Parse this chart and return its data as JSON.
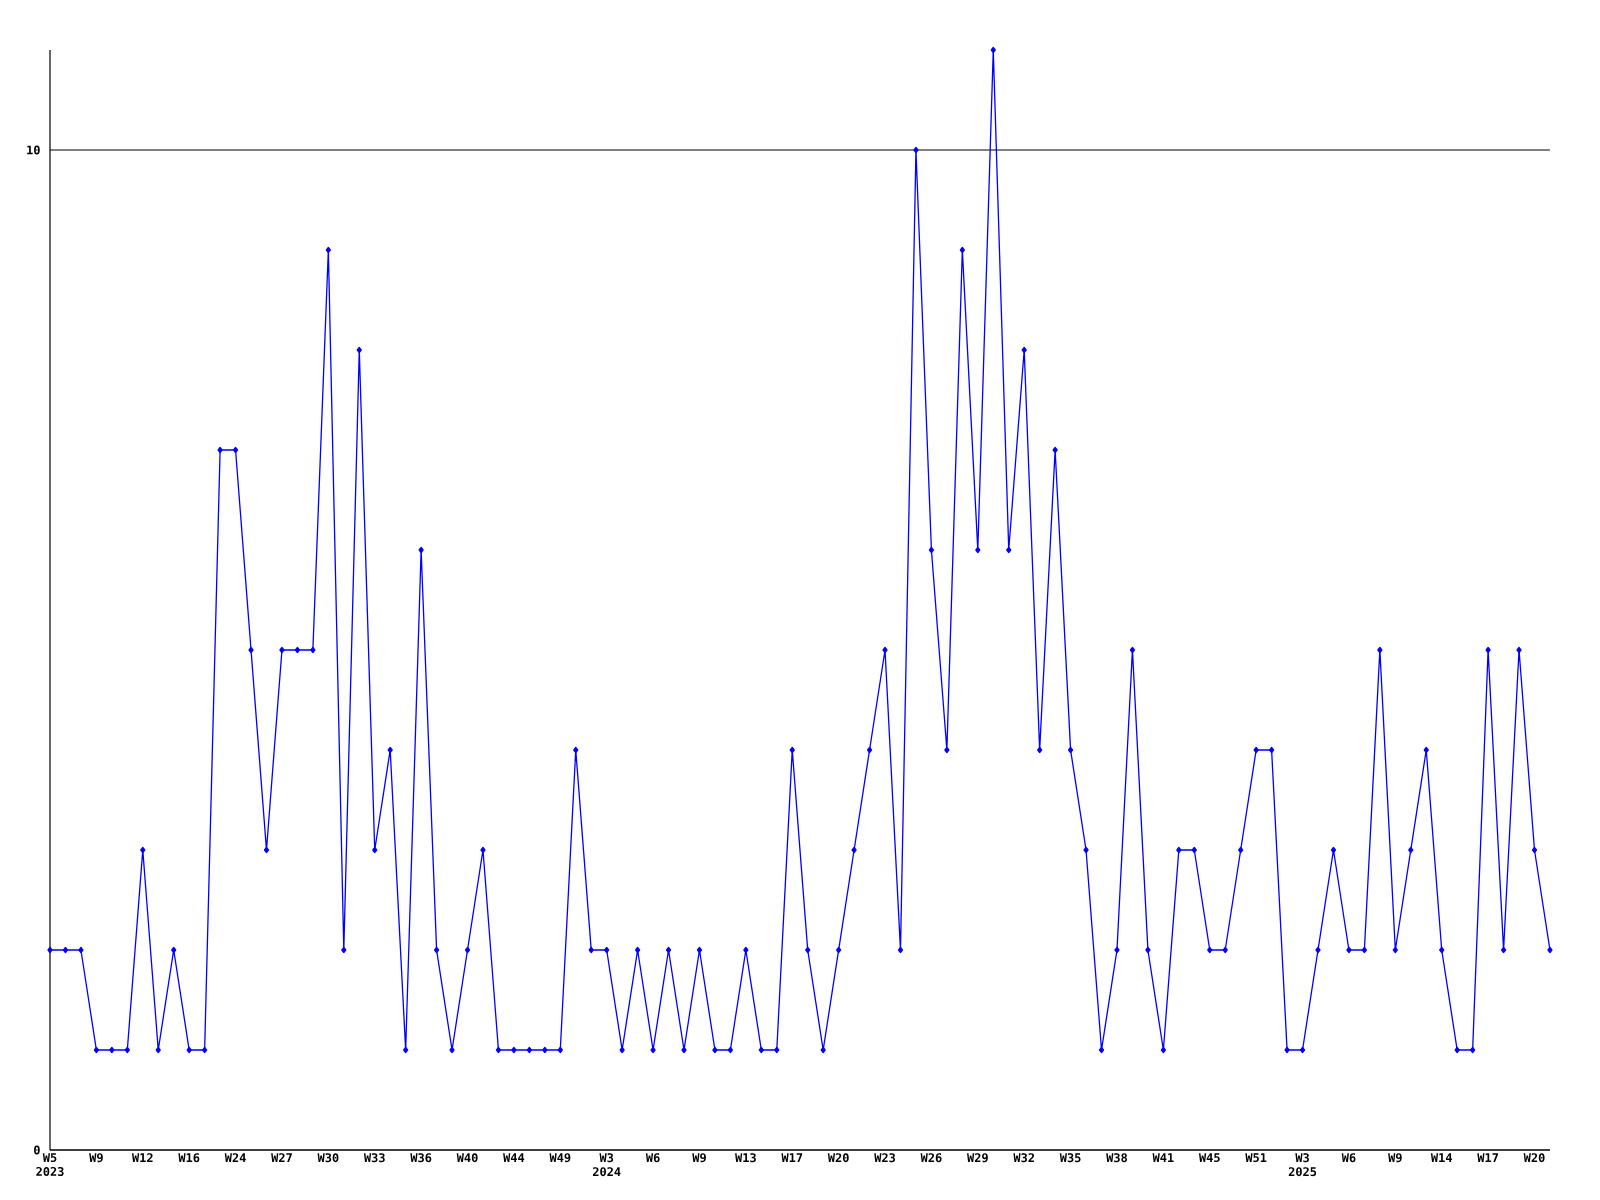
{
  "chart_data": {
    "type": "line",
    "categories": [
      "W5 2023",
      null,
      null,
      "W9",
      null,
      null,
      "W12",
      null,
      null,
      "W16",
      null,
      null,
      "W24",
      null,
      null,
      "W27",
      null,
      null,
      "W30",
      null,
      null,
      "W33",
      null,
      null,
      "W36",
      null,
      null,
      "W40",
      null,
      null,
      "W44",
      null,
      null,
      "W49",
      null,
      null,
      "W3 2024",
      null,
      null,
      "W6",
      null,
      null,
      "W9",
      null,
      null,
      "W13",
      null,
      null,
      "W17",
      null,
      null,
      "W20",
      null,
      null,
      "W23",
      null,
      null,
      "W26",
      null,
      null,
      "W29",
      null,
      null,
      "W32",
      null,
      null,
      "W35",
      null,
      null,
      "W38",
      null,
      null,
      "W41",
      null,
      null,
      "W45",
      null,
      null,
      "W51",
      null,
      null,
      "W3 2025",
      null,
      null,
      "W6",
      null,
      null,
      "W9",
      null,
      null,
      "W14",
      null,
      null,
      "W17",
      null,
      null,
      "W20",
      null
    ],
    "series": [
      {
        "color": "#0000ff",
        "values": [
          2,
          2,
          2,
          1,
          1,
          1,
          3,
          1,
          2,
          1,
          1,
          7,
          7,
          5,
          3,
          5,
          5,
          5,
          9,
          2,
          8,
          3,
          4,
          1,
          6,
          2,
          1,
          2,
          3,
          1,
          1,
          1,
          1,
          1,
          4,
          2,
          2,
          1,
          2,
          1,
          2,
          1,
          2,
          1,
          1,
          2,
          1,
          1,
          4,
          2,
          1,
          2,
          3,
          4,
          5,
          2,
          10,
          6,
          4,
          9,
          6,
          11,
          6,
          8,
          4,
          7,
          4,
          3,
          1,
          2,
          5,
          2,
          1,
          3,
          3,
          2,
          2,
          3,
          4,
          4,
          1,
          1,
          2,
          3,
          2,
          2,
          5,
          2,
          3,
          4,
          2,
          1,
          1,
          5,
          2,
          5,
          3,
          2
        ]
      }
    ],
    "ylim": [
      0,
      11
    ],
    "yticks": [
      0,
      10
    ],
    "grid": "y",
    "marker": "diamond",
    "line_style": "solid"
  }
}
